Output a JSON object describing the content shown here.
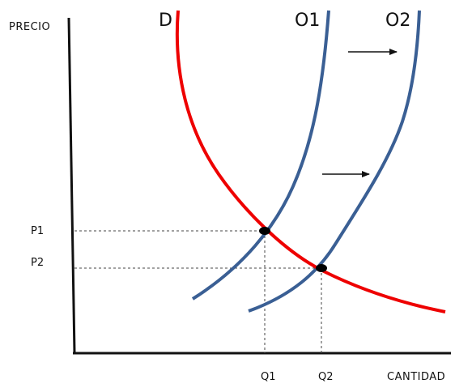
{
  "diagram": {
    "y_axis_label": "PRECIO",
    "x_axis_label": "CANTIDAD",
    "curves": {
      "demand": {
        "label": "D",
        "color": "#ee0000"
      },
      "supply1": {
        "label": "O1",
        "color": "#3a5f94"
      },
      "supply2": {
        "label": "O2",
        "color": "#3a5f94"
      }
    },
    "price_ticks": {
      "p1": "P1",
      "p2": "P2"
    },
    "quantity_ticks": {
      "q1": "Q1",
      "q2": "Q2"
    },
    "arrow_color": "#111111",
    "axis_color": "#111111"
  }
}
